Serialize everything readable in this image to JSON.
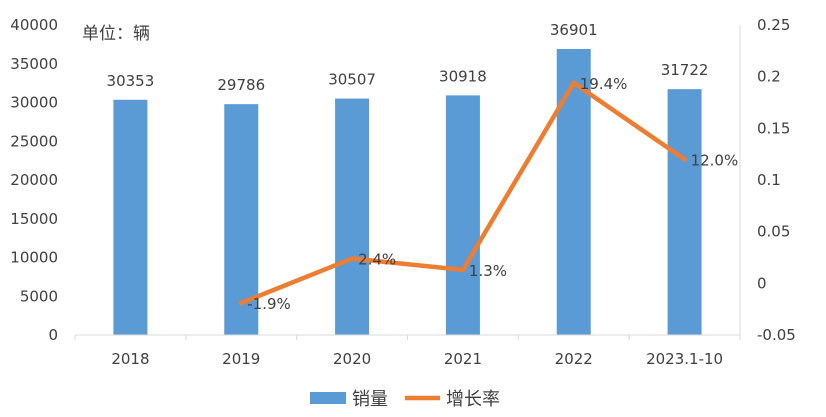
{
  "chart_data": {
    "type": "bar",
    "unit_label": "单位：辆",
    "categories": [
      "2018",
      "2019",
      "2020",
      "2021",
      "2022",
      "2023.1-10"
    ],
    "series": [
      {
        "name": "销量",
        "type": "bar",
        "axis": "left",
        "color": "#5B9BD5",
        "values": [
          30353,
          29786,
          30507,
          30918,
          36901,
          31722
        ],
        "labels": [
          "30353",
          "29786",
          "30507",
          "30918",
          "36901",
          "31722"
        ]
      },
      {
        "name": "增长率",
        "type": "line",
        "axis": "right",
        "color": "#ED7D31",
        "values": [
          null,
          -0.019,
          0.024,
          0.013,
          0.194,
          0.12
        ],
        "labels": [
          "",
          "-1.9%",
          "2.4%",
          "1.3%",
          "19.4%",
          "12.0%"
        ]
      }
    ],
    "y_left": {
      "range": [
        0,
        40000
      ],
      "ticks": [
        "0",
        "5000",
        "10000",
        "15000",
        "20000",
        "25000",
        "30000",
        "35000",
        "40000"
      ]
    },
    "y_right": {
      "range": [
        -0.05,
        0.25
      ],
      "ticks": [
        "-0.05",
        "0",
        "0.05",
        "0.1",
        "0.15",
        "0.2",
        "0.25"
      ]
    },
    "grid": false,
    "legend_position": "bottom"
  }
}
